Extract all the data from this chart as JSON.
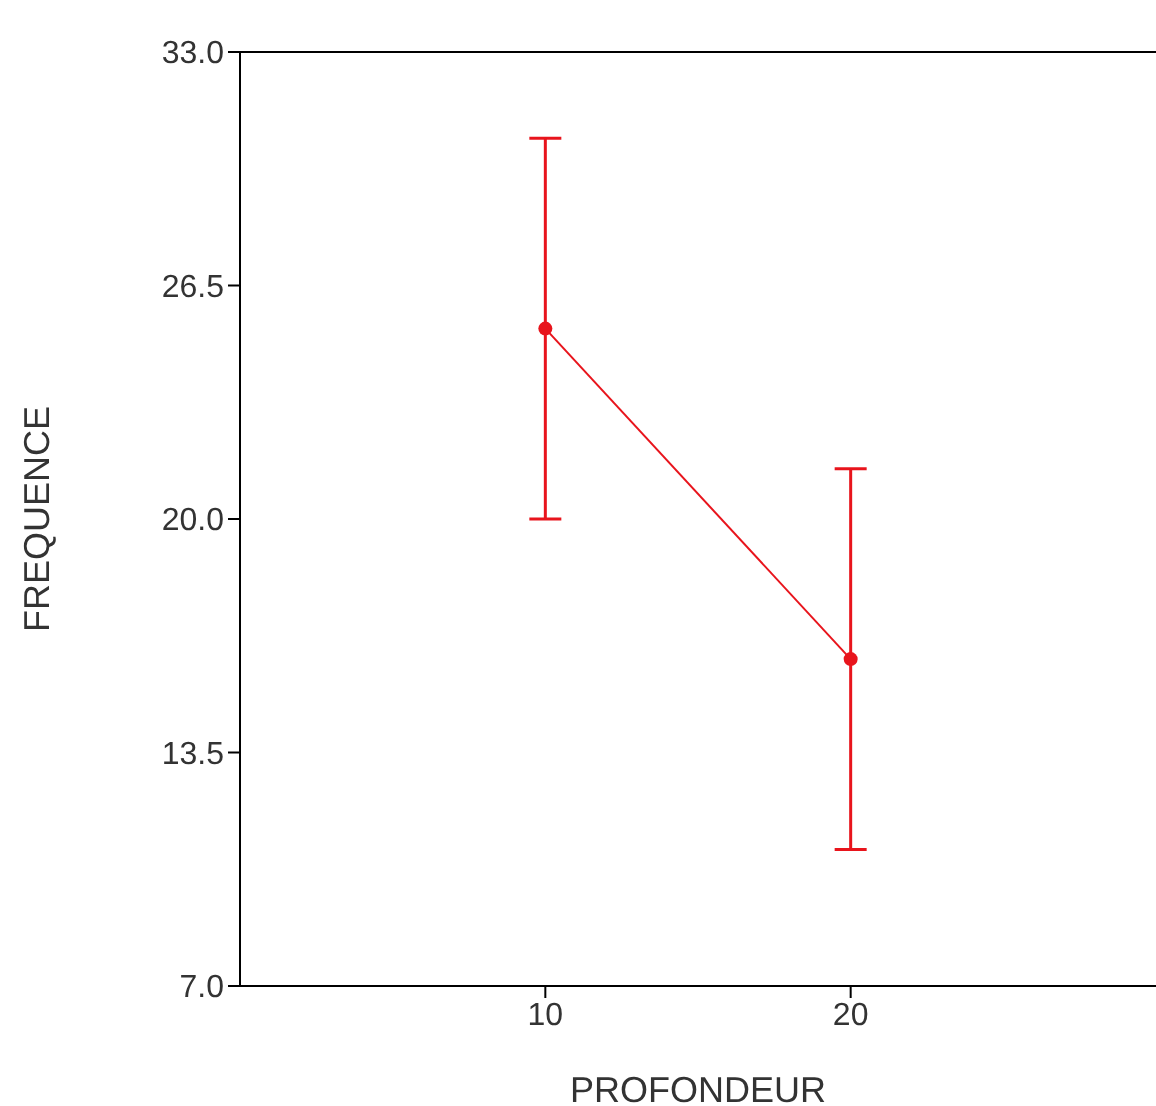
{
  "chart_data": {
    "type": "line",
    "xlabel": "PROFONDEUR",
    "ylabel": "FREQUENCE",
    "x": [
      10,
      20
    ],
    "series": [
      {
        "color": "#e8141c",
        "values": [
          25.3,
          16.1
        ],
        "errors": [
          5.3,
          5.3
        ]
      }
    ],
    "xlim": [
      0,
      30
    ],
    "xticks": [
      10,
      20
    ],
    "ylim": [
      7,
      33
    ],
    "yticks": [
      {
        "value": 7,
        "label": "7.0"
      },
      {
        "value": 13.5,
        "label": "13.5"
      },
      {
        "value": 20,
        "label": "20.0"
      },
      {
        "value": 26.5,
        "label": "26.5"
      },
      {
        "value": 33,
        "label": "33.0"
      }
    ],
    "grid": false,
    "legend": false,
    "marker": "circle",
    "line_style": "solid"
  }
}
